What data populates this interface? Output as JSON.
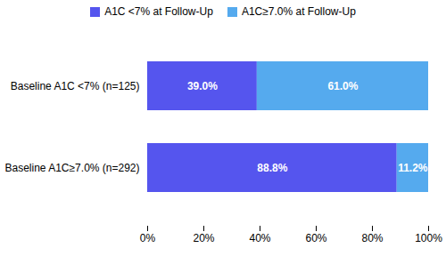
{
  "chart_data": {
    "type": "bar",
    "orientation": "horizontal",
    "stacked": true,
    "categories": [
      "Baseline A1C <7% (n=125)",
      "Baseline A1C≥7.0% (n=292)"
    ],
    "series": [
      {
        "name": "A1C <7% at Follow-Up",
        "color": "#5555ee",
        "values": [
          39.0,
          88.8
        ],
        "value_labels": [
          "39.0%",
          "88.8%"
        ]
      },
      {
        "name": "A1C≥7.0% at Follow-Up",
        "color": "#55aaee",
        "values": [
          61.0,
          11.2
        ],
        "value_labels": [
          "61.0%",
          "11.2%"
        ]
      }
    ],
    "xlim": [
      0,
      100
    ],
    "xticks": [
      {
        "value": 0,
        "label": "0%"
      },
      {
        "value": 20,
        "label": "20%"
      },
      {
        "value": 40,
        "label": "40%"
      },
      {
        "value": 60,
        "label": "60%"
      },
      {
        "value": 80,
        "label": "80%"
      },
      {
        "value": 100,
        "label": "100%"
      }
    ],
    "data_labels": true,
    "legend": "top",
    "grid": false
  }
}
